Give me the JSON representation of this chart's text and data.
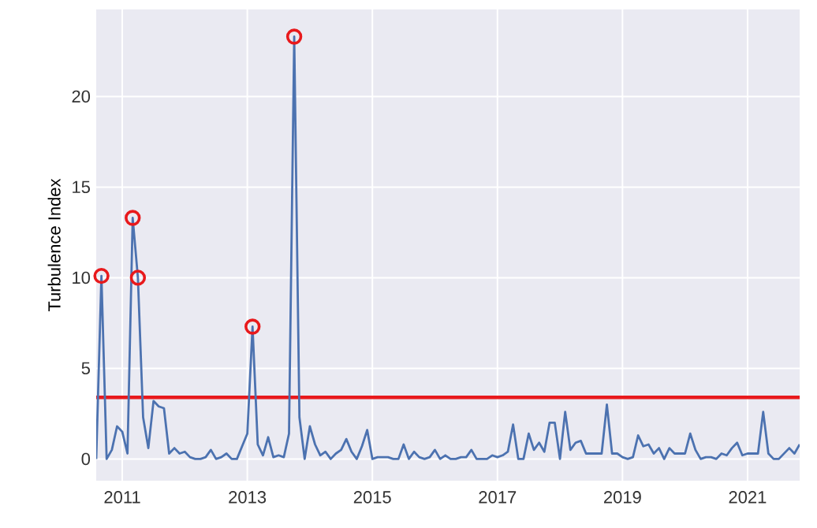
{
  "chart_data": {
    "type": "line",
    "ylabel": "Turbulence Index",
    "xlim": [
      "2010-08",
      "2021-11"
    ],
    "ylim": [
      -1.2,
      24.8
    ],
    "xticks": [
      "2011",
      "2013",
      "2015",
      "2017",
      "2019",
      "2021"
    ],
    "yticks": [
      0,
      5,
      10,
      15,
      20
    ],
    "grid": true,
    "series": [
      {
        "color": "#4c72b0",
        "x": [
          "2010-08",
          "2010-09",
          "2010-10",
          "2010-11",
          "2010-12",
          "2011-01",
          "2011-02",
          "2011-03",
          "2011-04",
          "2011-05",
          "2011-06",
          "2011-07",
          "2011-08",
          "2011-09",
          "2011-10",
          "2011-11",
          "2011-12",
          "2012-01",
          "2012-02",
          "2012-03",
          "2012-04",
          "2012-05",
          "2012-06",
          "2012-07",
          "2012-08",
          "2012-09",
          "2012-10",
          "2012-11",
          "2012-12",
          "2013-01",
          "2013-02",
          "2013-03",
          "2013-04",
          "2013-05",
          "2013-06",
          "2013-07",
          "2013-08",
          "2013-09",
          "2013-10",
          "2013-11",
          "2013-12",
          "2014-01",
          "2014-02",
          "2014-03",
          "2014-04",
          "2014-05",
          "2014-06",
          "2014-07",
          "2014-08",
          "2014-09",
          "2014-10",
          "2014-11",
          "2014-12",
          "2015-01",
          "2015-02",
          "2015-03",
          "2015-04",
          "2015-05",
          "2015-06",
          "2015-07",
          "2015-08",
          "2015-09",
          "2015-10",
          "2015-11",
          "2015-12",
          "2016-01",
          "2016-02",
          "2016-03",
          "2016-04",
          "2016-05",
          "2016-06",
          "2016-07",
          "2016-08",
          "2016-09",
          "2016-10",
          "2016-11",
          "2016-12",
          "2017-01",
          "2017-02",
          "2017-03",
          "2017-04",
          "2017-05",
          "2017-06",
          "2017-07",
          "2017-08",
          "2017-09",
          "2017-10",
          "2017-11",
          "2017-12",
          "2018-01",
          "2018-02",
          "2018-03",
          "2018-04",
          "2018-05",
          "2018-06",
          "2018-07",
          "2018-08",
          "2018-09",
          "2018-10",
          "2018-11",
          "2018-12",
          "2019-01",
          "2019-02",
          "2019-03",
          "2019-04",
          "2019-05",
          "2019-06",
          "2019-07",
          "2019-08",
          "2019-09",
          "2019-10",
          "2019-11",
          "2019-12",
          "2020-01",
          "2020-02",
          "2020-03",
          "2020-04",
          "2020-05",
          "2020-06",
          "2020-07",
          "2020-08",
          "2020-09",
          "2020-10",
          "2020-11",
          "2020-12",
          "2021-01",
          "2021-02",
          "2021-03",
          "2021-04",
          "2021-05",
          "2021-06",
          "2021-07",
          "2021-08",
          "2021-09",
          "2021-10",
          "2021-11"
        ],
        "values": [
          0.0,
          10.1,
          0.0,
          0.5,
          1.8,
          1.5,
          0.3,
          13.3,
          10.0,
          2.3,
          0.6,
          3.2,
          2.9,
          2.8,
          0.3,
          0.6,
          0.3,
          0.4,
          0.1,
          0.0,
          0.0,
          0.1,
          0.5,
          0.0,
          0.1,
          0.3,
          0.0,
          0.0,
          0.7,
          1.4,
          7.3,
          0.8,
          0.2,
          1.2,
          0.1,
          0.2,
          0.1,
          1.4,
          23.3,
          2.3,
          0.0,
          1.8,
          0.8,
          0.2,
          0.4,
          0.0,
          0.3,
          0.5,
          1.1,
          0.4,
          0.0,
          0.7,
          1.6,
          0.0,
          0.1,
          0.1,
          0.1,
          0.0,
          0.0,
          0.8,
          0.0,
          0.4,
          0.1,
          0.0,
          0.1,
          0.5,
          0.0,
          0.2,
          0.0,
          0.0,
          0.1,
          0.1,
          0.5,
          0.0,
          0.0,
          0.0,
          0.2,
          0.1,
          0.2,
          0.4,
          1.9,
          0.0,
          0.0,
          1.4,
          0.5,
          0.9,
          0.4,
          2.0,
          2.0,
          0.0,
          2.6,
          0.5,
          0.9,
          1.0,
          0.3,
          0.3,
          0.3,
          0.3,
          3.0,
          0.3,
          0.3,
          0.1,
          0.0,
          0.1,
          1.3,
          0.7,
          0.8,
          0.3,
          0.6,
          0.0,
          0.6,
          0.3,
          0.3,
          0.3,
          1.4,
          0.5,
          0.0,
          0.1,
          0.1,
          0.0,
          0.3,
          0.2,
          0.6,
          0.9,
          0.2,
          0.3,
          0.3,
          0.3,
          2.6,
          0.3,
          0.0,
          0.0,
          0.3,
          0.6,
          0.3,
          0.8
        ]
      },
      {
        "type": "scatter",
        "color": "#e8191c",
        "marker": "circle",
        "x": [
          "2010-09",
          "2011-03",
          "2011-04",
          "2013-02",
          "2013-10"
        ],
        "values": [
          10.1,
          13.3,
          10.0,
          7.3,
          23.3
        ]
      }
    ],
    "ref_lines": [
      {
        "axis": "y",
        "value": 3.4,
        "color": "#e8191c"
      }
    ]
  }
}
